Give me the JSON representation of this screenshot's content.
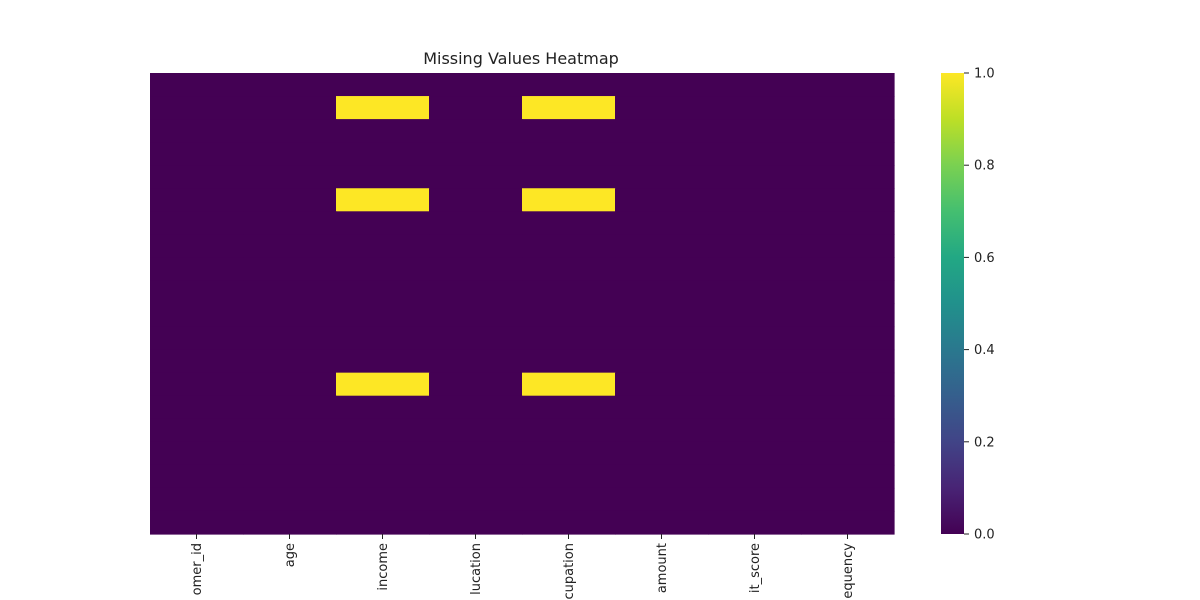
{
  "chart_data": {
    "type": "heatmap",
    "title": "Missing Values Heatmap",
    "xlabel": "",
    "ylabel": "",
    "columns": [
      "omer_id",
      "age",
      "income",
      "lucation",
      "cupation",
      "amount",
      "it_score",
      "equency"
    ],
    "row_count": 20,
    "values": [
      [
        0,
        0,
        0,
        0,
        0,
        0,
        0,
        0
      ],
      [
        0,
        0,
        1,
        0,
        1,
        0,
        0,
        0
      ],
      [
        0,
        0,
        0,
        0,
        0,
        0,
        0,
        0
      ],
      [
        0,
        0,
        0,
        0,
        0,
        0,
        0,
        0
      ],
      [
        0,
        0,
        0,
        0,
        0,
        0,
        0,
        0
      ],
      [
        0,
        0,
        1,
        0,
        1,
        0,
        0,
        0
      ],
      [
        0,
        0,
        0,
        0,
        0,
        0,
        0,
        0
      ],
      [
        0,
        0,
        0,
        0,
        0,
        0,
        0,
        0
      ],
      [
        0,
        0,
        0,
        0,
        0,
        0,
        0,
        0
      ],
      [
        0,
        0,
        0,
        0,
        0,
        0,
        0,
        0
      ],
      [
        0,
        0,
        0,
        0,
        0,
        0,
        0,
        0
      ],
      [
        0,
        0,
        0,
        0,
        0,
        0,
        0,
        0
      ],
      [
        0,
        0,
        0,
        0,
        0,
        0,
        0,
        0
      ],
      [
        0,
        0,
        1,
        0,
        1,
        0,
        0,
        0
      ],
      [
        0,
        0,
        0,
        0,
        0,
        0,
        0,
        0
      ],
      [
        0,
        0,
        0,
        0,
        0,
        0,
        0,
        0
      ],
      [
        0,
        0,
        0,
        0,
        0,
        0,
        0,
        0
      ],
      [
        0,
        0,
        0,
        0,
        0,
        0,
        0,
        0
      ],
      [
        0,
        0,
        0,
        0,
        0,
        0,
        0,
        0
      ],
      [
        0,
        0,
        0,
        0,
        0,
        0,
        0,
        0
      ]
    ],
    "colormap": "viridis",
    "colorbar": {
      "range": [
        0.0,
        1.0
      ],
      "ticks": [
        "0.0",
        "0.2",
        "0.4",
        "0.6",
        "0.8",
        "1.0"
      ],
      "tick_values": [
        0.0,
        0.2,
        0.4,
        0.6,
        0.8,
        1.0
      ]
    },
    "colors": {
      "missing": "#fde725",
      "present": "#440154"
    },
    "grid": false,
    "legend": "colorbar-right"
  }
}
